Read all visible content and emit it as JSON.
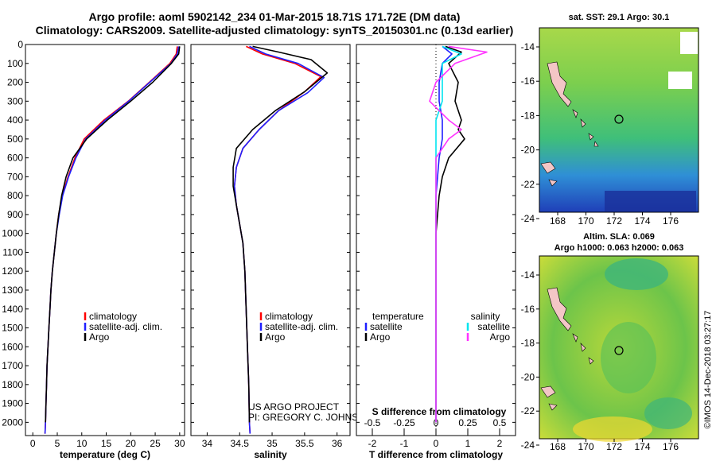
{
  "header": {
    "title_line1": "Argo profile: aoml 5902142_234 01-Mar-2015 18.71S 171.72E (DM data)",
    "title_line2": "Climatology: CARS2009. Satellite-adjusted climatology: synTS_20150301.nc (0.13d earlier)"
  },
  "colors": {
    "climatology": "#ff0000",
    "satellite": "#1f1fff",
    "argo": "#000000",
    "sat_sal": "#00e5ee",
    "argo_sal": "#ff33ff"
  },
  "chart_data": [
    {
      "id": "temperature",
      "type": "line",
      "xlabel": "temperature (deg C)",
      "ylabel": "",
      "xlim": [
        -1.5,
        31
      ],
      "ylim": [
        2070,
        0
      ],
      "xticks": [
        0,
        5,
        10,
        15,
        20,
        25,
        30
      ],
      "yticks": [
        0,
        100,
        200,
        300,
        400,
        500,
        600,
        700,
        800,
        900,
        1000,
        1100,
        1200,
        1300,
        1400,
        1500,
        1600,
        1700,
        1800,
        1900,
        2000
      ],
      "legend": [
        "climatology",
        "satellite-adj. clim.",
        "Argo"
      ],
      "series": [
        {
          "name": "climatology",
          "color": "#ff0000",
          "points": [
            [
              29.5,
              10
            ],
            [
              29.3,
              50
            ],
            [
              28,
              100
            ],
            [
              23.8,
              200
            ],
            [
              19.5,
              300
            ],
            [
              14.5,
              400
            ],
            [
              10.5,
              500
            ],
            [
              8.6,
              600
            ],
            [
              7.2,
              700
            ],
            [
              6,
              800
            ],
            [
              5.3,
              900
            ],
            [
              4.8,
              1000
            ],
            [
              4.4,
              1100
            ],
            [
              4,
              1200
            ],
            [
              3.7,
              1300
            ],
            [
              3.5,
              1400
            ],
            [
              3.3,
              1500
            ],
            [
              3.1,
              1600
            ],
            [
              2.9,
              1700
            ],
            [
              2.8,
              1800
            ],
            [
              2.7,
              1900
            ],
            [
              2.6,
              2000
            ],
            [
              2.5,
              2060
            ]
          ]
        },
        {
          "name": "satellite-adj. clim.",
          "color": "#1f1fff",
          "points": [
            [
              29.8,
              10
            ],
            [
              29.5,
              50
            ],
            [
              28.2,
              100
            ],
            [
              23.9,
              200
            ],
            [
              19.6,
              300
            ],
            [
              14.8,
              400
            ],
            [
              10.8,
              500
            ],
            [
              8.8,
              600
            ],
            [
              7.3,
              700
            ],
            [
              6.1,
              800
            ],
            [
              5.4,
              900
            ],
            [
              4.8,
              1000
            ],
            [
              4.4,
              1100
            ],
            [
              4,
              1200
            ],
            [
              3.7,
              1300
            ],
            [
              3.5,
              1400
            ],
            [
              3.3,
              1500
            ],
            [
              3.1,
              1600
            ],
            [
              2.9,
              1700
            ],
            [
              2.8,
              1800
            ],
            [
              2.7,
              1900
            ],
            [
              2.6,
              2000
            ],
            [
              2.5,
              2060
            ]
          ]
        },
        {
          "name": "Argo",
          "color": "#000000",
          "points": [
            [
              30,
              10
            ],
            [
              29.8,
              50
            ],
            [
              28.3,
              100
            ],
            [
              24.5,
              200
            ],
            [
              20,
              300
            ],
            [
              15.2,
              400
            ],
            [
              11,
              500
            ],
            [
              8.2,
              600
            ],
            [
              6.8,
              700
            ],
            [
              5.9,
              800
            ],
            [
              5.3,
              900
            ],
            [
              4.8,
              1000
            ],
            [
              4.4,
              1100
            ],
            [
              4,
              1200
            ],
            [
              3.7,
              1300
            ],
            [
              3.5,
              1400
            ],
            [
              3.3,
              1500
            ],
            [
              3.1,
              1600
            ],
            [
              2.9,
              1700
            ],
            [
              2.8,
              1800
            ],
            [
              2.7,
              1900
            ],
            [
              2.6,
              2000
            ]
          ]
        }
      ]
    },
    {
      "id": "salinity",
      "type": "line",
      "xlabel": "salinity",
      "ylabel": "",
      "xlim": [
        33.75,
        36.2
      ],
      "ylim": [
        2070,
        0
      ],
      "xticks": [
        34,
        34.5,
        35,
        35.5,
        36
      ],
      "xtick_labels": [
        "34",
        "34.5",
        "35",
        "35.5",
        "36"
      ],
      "legend": [
        "climatology",
        "satellite-adj. clim.",
        "Argo"
      ],
      "annotations": [
        "US ARGO PROJECT",
        "PI: GREGORY C. JOHNSON"
      ],
      "series": [
        {
          "name": "climatology",
          "color": "#ff0000",
          "points": [
            [
              34.6,
              10
            ],
            [
              34.85,
              50
            ],
            [
              35.35,
              100
            ],
            [
              35.75,
              170
            ],
            [
              35.5,
              250
            ],
            [
              35.1,
              350
            ],
            [
              34.8,
              450
            ],
            [
              34.55,
              550
            ],
            [
              34.45,
              650
            ],
            [
              34.42,
              750
            ],
            [
              34.45,
              850
            ],
            [
              34.5,
              950
            ],
            [
              34.55,
              1050
            ],
            [
              34.58,
              1200
            ],
            [
              34.6,
              1400
            ],
            [
              34.62,
              1600
            ],
            [
              34.64,
              1800
            ],
            [
              34.65,
              2000
            ],
            [
              34.66,
              2060
            ]
          ]
        },
        {
          "name": "satellite-adj. clim.",
          "color": "#1f1fff",
          "points": [
            [
              34.65,
              10
            ],
            [
              34.9,
              50
            ],
            [
              35.4,
              100
            ],
            [
              35.8,
              175
            ],
            [
              35.55,
              255
            ],
            [
              35.1,
              350
            ],
            [
              34.8,
              450
            ],
            [
              34.55,
              550
            ],
            [
              34.45,
              650
            ],
            [
              34.42,
              750
            ],
            [
              34.45,
              850
            ],
            [
              34.5,
              950
            ],
            [
              34.55,
              1050
            ],
            [
              34.58,
              1200
            ],
            [
              34.6,
              1400
            ],
            [
              34.62,
              1600
            ],
            [
              34.64,
              1800
            ],
            [
              34.65,
              2000
            ],
            [
              34.66,
              2060
            ]
          ]
        },
        {
          "name": "Argo",
          "color": "#000000",
          "points": [
            [
              34.7,
              10
            ],
            [
              35.1,
              40
            ],
            [
              35.6,
              80
            ],
            [
              35.85,
              150
            ],
            [
              35.5,
              250
            ],
            [
              35.05,
              350
            ],
            [
              34.7,
              450
            ],
            [
              34.45,
              550
            ],
            [
              34.4,
              650
            ],
            [
              34.4,
              750
            ],
            [
              34.45,
              850
            ],
            [
              34.5,
              950
            ],
            [
              34.55,
              1050
            ],
            [
              34.58,
              1200
            ],
            [
              34.6,
              1400
            ],
            [
              34.62,
              1600
            ],
            [
              34.64,
              1800
            ],
            [
              34.65,
              2000
            ]
          ]
        }
      ]
    },
    {
      "id": "differences",
      "type": "line",
      "xlabel": "T difference from climatology",
      "x2label": "S difference from climatology",
      "ylabel": "",
      "xlim": [
        -2.5,
        2.5
      ],
      "x2lim": [
        -0.625,
        0.625
      ],
      "ylim": [
        2070,
        0
      ],
      "xticks": [
        -2,
        -1,
        0,
        1,
        2
      ],
      "x2ticks": [
        -0.5,
        -0.25,
        0,
        0.25,
        0.5
      ],
      "x2tick_labels": [
        "-0.5",
        "-0.25",
        "0",
        "0.25",
        "0.5"
      ],
      "legend_temperature_title": "temperature",
      "legend_salinity_title": "salinity",
      "legend_temperature": [
        "satellite",
        "Argo"
      ],
      "legend_salinity": [
        "satellite",
        "Argo"
      ],
      "series": [
        {
          "name": "temperature satellite",
          "axis": "T",
          "color": "#1f1fff",
          "points": [
            [
              0.2,
              10
            ],
            [
              0.5,
              50
            ],
            [
              0.2,
              100
            ],
            [
              0.1,
              200
            ],
            [
              0.1,
              300
            ],
            [
              0.2,
              400
            ],
            [
              0.2,
              500
            ],
            [
              0.1,
              600
            ],
            [
              0,
              800
            ],
            [
              0,
              1000
            ],
            [
              0,
              1500
            ],
            [
              0,
              2000
            ]
          ]
        },
        {
          "name": "temperature Argo",
          "axis": "T",
          "color": "#000000",
          "points": [
            [
              0.3,
              10
            ],
            [
              0.8,
              40
            ],
            [
              0.4,
              100
            ],
            [
              0.7,
              200
            ],
            [
              0.6,
              300
            ],
            [
              0.8,
              400
            ],
            [
              0.7,
              450
            ],
            [
              0.9,
              500
            ],
            [
              0.4,
              600
            ],
            [
              0.2,
              700
            ],
            [
              0.1,
              800
            ],
            [
              0,
              1000
            ],
            [
              0,
              1500
            ],
            [
              0,
              2000
            ]
          ]
        },
        {
          "name": "salinity satellite",
          "axis": "S",
          "color": "#00e5ee",
          "points": [
            [
              0.05,
              10
            ],
            [
              0.2,
              50
            ],
            [
              0.05,
              100
            ],
            [
              0.05,
              200
            ],
            [
              0.05,
              300
            ],
            [
              0,
              400
            ],
            [
              0,
              600
            ],
            [
              0,
              1000
            ],
            [
              0,
              1500
            ],
            [
              0,
              2000
            ]
          ]
        },
        {
          "name": "salinity Argo",
          "axis": "S",
          "color": "#ff33ff",
          "points": [
            [
              0.1,
              10
            ],
            [
              0.4,
              40
            ],
            [
              0.15,
              100
            ],
            [
              0,
              200
            ],
            [
              -0.05,
              300
            ],
            [
              0.1,
              400
            ],
            [
              0.2,
              450
            ],
            [
              0.1,
              500
            ],
            [
              0,
              600
            ],
            [
              0,
              1000
            ],
            [
              0,
              1500
            ],
            [
              0,
              2000
            ]
          ]
        }
      ]
    }
  ],
  "maps": {
    "sst": {
      "title": "sat. SST: 29.1 Argo: 30.1",
      "xticks": [
        "168",
        "170",
        "172",
        "174",
        "176"
      ],
      "yticks": [
        "-14",
        "-16",
        "-18",
        "-20",
        "-22",
        "-24"
      ]
    },
    "sla": {
      "title_line1": "Altim. SLA: 0.069",
      "title_line2": "Argo h1000: 0.063 h2000: 0.063",
      "xticks": [
        "168",
        "170",
        "172",
        "174",
        "176"
      ],
      "yticks": [
        "-14",
        "-16",
        "-18",
        "-20",
        "-22",
        "-24"
      ]
    },
    "credit": "©IMOS 14-Dec-2018 03:27:17"
  }
}
